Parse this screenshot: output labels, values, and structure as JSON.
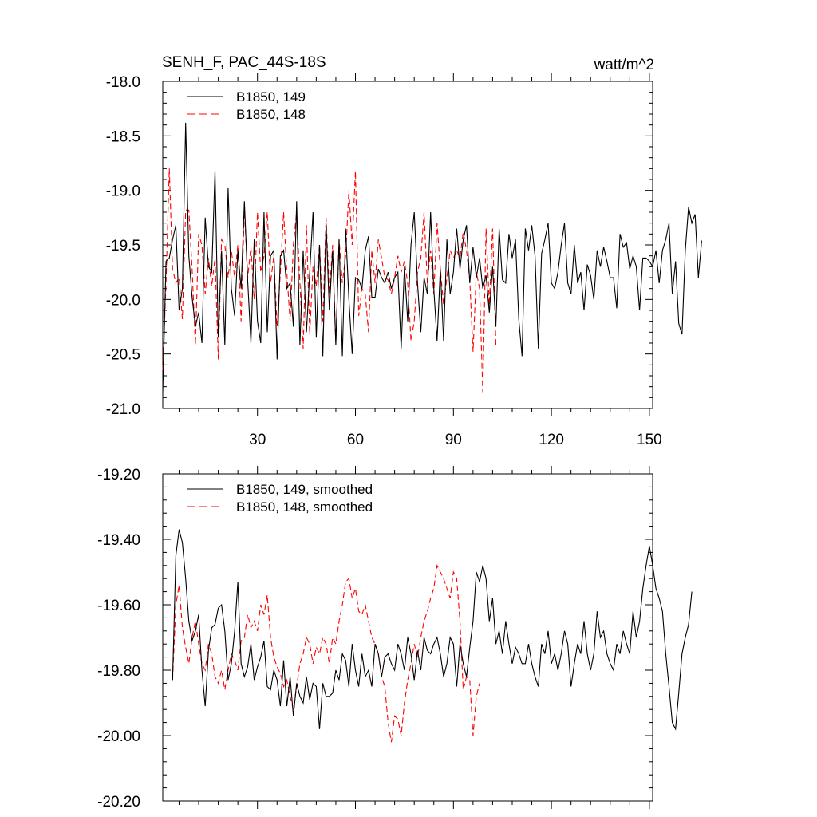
{
  "chart_data": [
    {
      "type": "line",
      "title": "SENH_F, PAC_44S-18S",
      "units": "watt/m^2",
      "xlim": [
        1,
        151
      ],
      "ylim": [
        -21.0,
        -18.0
      ],
      "xticks": [
        30,
        60,
        90,
        120,
        150
      ],
      "xtick_labels": [
        "30",
        "60",
        "90",
        "120",
        "150"
      ],
      "yticks": [
        -21.0,
        -20.5,
        -20.0,
        -19.5,
        -19.0,
        -18.5,
        -18.0
      ],
      "ytick_labels": [
        "-21.0",
        "-20.5",
        "-20.0",
        "-19.5",
        "-19.0",
        "-18.5",
        "-18.0"
      ],
      "legend_position": "top-left",
      "series": [
        {
          "name": "B1850, 149",
          "color": "#000000",
          "dash": "solid",
          "x_start": 1,
          "values": [
            -20.85,
            -19.65,
            -19.62,
            -19.45,
            -19.32,
            -20.1,
            -19.9,
            -18.38,
            -19.6,
            -19.98,
            -20.25,
            -20.12,
            -20.4,
            -19.25,
            -19.7,
            -19.75,
            -18.82,
            -20.35,
            -19.55,
            -20.42,
            -18.98,
            -19.9,
            -20.15,
            -19.55,
            -19.9,
            -19.1,
            -19.82,
            -20.4,
            -19.45,
            -20.2,
            -20.4,
            -19.2,
            -20.3,
            -19.6,
            -19.55,
            -20.55,
            -19.6,
            -19.55,
            -19.9,
            -19.85,
            -20.25,
            -19.1,
            -20.42,
            -19.55,
            -20.3,
            -19.75,
            -19.2,
            -20.35,
            -19.5,
            -20.52,
            -19.3,
            -20.1,
            -19.55,
            -20.42,
            -19.45,
            -20.52,
            -19.35,
            -20.0,
            -20.5,
            -19.8,
            -19.82,
            -19.9,
            -19.55,
            -19.42,
            -19.98,
            -19.98,
            -19.72,
            -19.8,
            -19.85,
            -19.75,
            -19.9,
            -19.8,
            -19.75,
            -20.45,
            -19.7,
            -20.2,
            -19.5,
            -19.2,
            -19.85,
            -20.3,
            -19.8,
            -19.95,
            -19.2,
            -19.9,
            -20.38,
            -19.72,
            -20.38,
            -19.45,
            -19.95,
            -19.75,
            -19.35,
            -19.72,
            -19.45,
            -19.32,
            -19.85,
            -19.52,
            -19.8,
            -19.62,
            -19.9,
            -19.78,
            -20.12,
            -19.7,
            -20.25,
            -19.35,
            -19.82,
            -19.85,
            -19.4,
            -19.62,
            -19.45,
            -20.18,
            -20.52,
            -19.35,
            -19.55,
            -19.32,
            -19.6,
            -20.45,
            -19.58,
            -19.45,
            -19.3,
            -19.85,
            -19.9,
            -19.75,
            -19.5,
            -19.3,
            -19.85,
            -19.95,
            -19.5,
            -19.85,
            -19.75,
            -20.1,
            -19.68,
            -19.78,
            -20.0,
            -19.55,
            -19.7,
            -19.52,
            -19.65,
            -19.8,
            -19.8,
            -20.08,
            -19.4,
            -19.52,
            -19.48,
            -19.72,
            -19.6,
            -19.7,
            -20.1,
            -19.62,
            -19.62,
            -19.65,
            -19.7,
            -19.55,
            -19.85,
            -19.55,
            -19.45,
            -19.3,
            -19.95,
            -19.65,
            -20.22,
            -20.32,
            -19.55,
            -19.15,
            -19.3,
            -19.22,
            -19.8,
            -19.46
          ]
        },
        {
          "name": "B1850, 148",
          "color": "#ff0000",
          "dash": "dashed",
          "x_start": 1,
          "values": [
            -20.65,
            -19.85,
            -18.8,
            -19.72,
            -19.85,
            -19.8,
            -20.18,
            -19.18,
            -19.18,
            -19.72,
            -20.42,
            -19.4,
            -19.5,
            -19.95,
            -19.62,
            -19.88,
            -19.62,
            -20.55,
            -19.45,
            -19.5,
            -19.8,
            -19.55,
            -19.8,
            -19.5,
            -20.2,
            -19.15,
            -19.8,
            -19.52,
            -20.0,
            -19.2,
            -19.75,
            -19.6,
            -19.2,
            -19.85,
            -19.6,
            -20.25,
            -19.75,
            -19.2,
            -19.75,
            -20.2,
            -19.5,
            -19.2,
            -19.85,
            -20.45,
            -19.32,
            -20.32,
            -19.7,
            -19.88,
            -19.5,
            -20.2,
            -19.25,
            -19.95,
            -19.5,
            -20.4,
            -19.45,
            -19.85,
            -19.6,
            -19.0,
            -19.5,
            -18.82,
            -20.15,
            -19.9,
            -19.95,
            -20.3,
            -19.55,
            -19.85,
            -19.45,
            -19.62,
            -19.8,
            -19.82,
            -19.95,
            -19.8,
            -19.6,
            -19.75,
            -19.65,
            -19.85,
            -20.38,
            -20.2,
            -19.75,
            -19.62,
            -19.2,
            -19.85,
            -19.55,
            -19.95,
            -19.3,
            -19.72,
            -20.05,
            -19.8,
            -19.55,
            -19.62,
            -19.55,
            -19.62,
            -19.38,
            -19.55,
            -19.82,
            -20.48,
            -19.75,
            -19.9,
            -20.85,
            -19.35,
            -20.05,
            -19.35,
            -20.42
          ]
        }
      ]
    },
    {
      "type": "line",
      "title": "",
      "xlim": [
        1,
        151
      ],
      "ylim": [
        -20.2,
        -19.2
      ],
      "xticks": [
        30,
        60,
        90,
        120,
        150
      ],
      "yticks": [
        -20.2,
        -20.0,
        -19.8,
        -19.6,
        -19.4,
        -19.2
      ],
      "ytick_labels": [
        "-20.20",
        "-20.00",
        "-19.80",
        "-19.60",
        "-19.40",
        "-19.20"
      ],
      "legend_position": "top-left",
      "series": [
        {
          "name": "B1850, 149, smoothed",
          "color": "#000000",
          "dash": "solid",
          "x_start": 4,
          "values": [
            -19.83,
            -19.45,
            -19.37,
            -19.41,
            -19.52,
            -19.65,
            -19.71,
            -19.68,
            -19.63,
            -19.8,
            -19.91,
            -19.74,
            -19.67,
            -19.66,
            -19.61,
            -19.6,
            -19.68,
            -19.83,
            -19.78,
            -19.68,
            -19.53,
            -19.78,
            -19.82,
            -19.79,
            -19.72,
            -19.83,
            -19.79,
            -19.76,
            -19.71,
            -19.85,
            -19.86,
            -19.8,
            -19.83,
            -19.91,
            -19.77,
            -19.91,
            -19.82,
            -19.94,
            -19.84,
            -19.88,
            -19.9,
            -19.82,
            -19.89,
            -19.84,
            -19.85,
            -19.98,
            -19.84,
            -19.88,
            -19.88,
            -19.87,
            -19.8,
            -19.83,
            -19.75,
            -19.77,
            -19.85,
            -19.72,
            -19.8,
            -19.85,
            -19.75,
            -19.82,
            -19.8,
            -19.85,
            -19.72,
            -19.75,
            -19.82,
            -19.76,
            -19.75,
            -19.78,
            -19.8,
            -19.72,
            -19.75,
            -19.8,
            -19.7,
            -19.75,
            -19.83,
            -19.74,
            -19.8,
            -19.7,
            -19.74,
            -19.75,
            -19.72,
            -19.7,
            -19.75,
            -19.82,
            -19.78,
            -19.7,
            -19.72,
            -19.85,
            -19.72,
            -19.78,
            -19.82,
            -19.73,
            -19.65,
            -19.5,
            -19.53,
            -19.48,
            -19.52,
            -19.65,
            -19.58,
            -19.72,
            -19.68,
            -19.75,
            -19.65,
            -19.72,
            -19.78,
            -19.73,
            -19.75,
            -19.78,
            -19.78,
            -19.72,
            -19.78,
            -19.82,
            -19.85,
            -19.72,
            -19.75,
            -19.68,
            -19.78,
            -19.75,
            -19.8,
            -19.75,
            -19.68,
            -19.72,
            -19.85,
            -19.78,
            -19.72,
            -19.75,
            -19.65,
            -19.75,
            -19.8,
            -19.75,
            -19.62,
            -19.7,
            -19.68,
            -19.75,
            -19.78,
            -19.8,
            -19.72,
            -19.75,
            -19.68,
            -19.72,
            -19.75,
            -19.62,
            -19.7,
            -19.65,
            -19.55,
            -19.48,
            -19.42,
            -19.48,
            -19.55,
            -19.58,
            -19.62,
            -19.75,
            -19.85,
            -19.96,
            -19.98,
            -19.87,
            -19.75,
            -19.7,
            -19.66,
            -19.56
          ]
        },
        {
          "name": "B1850, 148, smoothed",
          "color": "#ff0000",
          "dash": "dashed",
          "x_start": 4,
          "values": [
            -19.83,
            -19.6,
            -19.54,
            -19.67,
            -19.73,
            -19.78,
            -19.7,
            -19.65,
            -19.72,
            -19.78,
            -19.8,
            -19.72,
            -19.75,
            -19.82,
            -19.84,
            -19.8,
            -19.86,
            -19.8,
            -19.75,
            -19.77,
            -19.8,
            -19.71,
            -19.7,
            -19.63,
            -19.67,
            -19.65,
            -19.68,
            -19.6,
            -19.63,
            -19.57,
            -19.7,
            -19.76,
            -19.79,
            -19.81,
            -19.85,
            -19.83,
            -19.88,
            -19.92,
            -19.85,
            -19.78,
            -19.75,
            -19.7,
            -19.72,
            -19.78,
            -19.73,
            -19.75,
            -19.7,
            -19.72,
            -19.78,
            -19.7,
            -19.72,
            -19.65,
            -19.6,
            -19.53,
            -19.52,
            -19.58,
            -19.55,
            -19.62,
            -19.63,
            -19.6,
            -19.65,
            -19.7,
            -19.72,
            -19.75,
            -19.82,
            -19.85,
            -19.96,
            -20.02,
            -19.94,
            -19.95,
            -20.0,
            -19.9,
            -19.83,
            -19.78,
            -19.72,
            -19.76,
            -19.7,
            -19.65,
            -19.62,
            -19.58,
            -19.55,
            -19.48,
            -19.5,
            -19.52,
            -19.55,
            -19.58,
            -19.5,
            -19.52,
            -19.65,
            -19.86,
            -19.82,
            -19.83,
            -20.0,
            -19.88,
            -19.84
          ]
        }
      ]
    }
  ]
}
